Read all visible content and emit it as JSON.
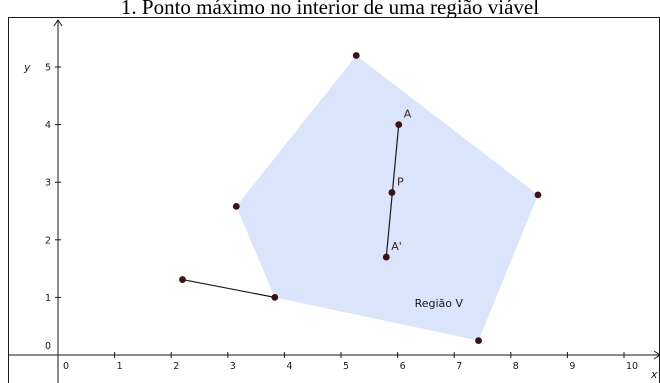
{
  "caption": "1. Ponto máximo no interior de uma região viável",
  "axes": {
    "x_name": "x",
    "y_name": "y",
    "x_ticks": [
      "0",
      "1",
      "2",
      "3",
      "4",
      "5",
      "6",
      "7",
      "8",
      "9",
      "10"
    ],
    "y_ticks": [
      "0",
      "1",
      "2",
      "3",
      "4",
      "5"
    ]
  },
  "region": {
    "label": "Região V",
    "fill": "#dae4fa",
    "vertices": [
      [
        5.27,
        5.2
      ],
      [
        8.48,
        2.78
      ],
      [
        7.43,
        0.25
      ],
      [
        3.83,
        1.0
      ],
      [
        3.15,
        2.58
      ]
    ]
  },
  "segments": [
    {
      "from": [
        2.2,
        1.31
      ],
      "to": [
        3.83,
        1.0
      ]
    },
    {
      "from": [
        5.8,
        1.7
      ],
      "to": [
        6.02,
        4.0
      ]
    }
  ],
  "points": [
    {
      "label": "A",
      "x": 6.02,
      "y": 4.0
    },
    {
      "label": "P",
      "x": 5.9,
      "y": 2.82
    },
    {
      "label": "A'",
      "x": 5.8,
      "y": 1.7
    },
    {
      "label": "",
      "x": 5.27,
      "y": 5.2
    },
    {
      "label": "",
      "x": 8.48,
      "y": 2.78
    },
    {
      "label": "",
      "x": 7.43,
      "y": 0.25
    },
    {
      "label": "",
      "x": 3.83,
      "y": 1.0
    },
    {
      "label": "",
      "x": 3.15,
      "y": 2.58
    },
    {
      "label": "",
      "x": 2.2,
      "y": 1.31
    }
  ],
  "colors": {
    "axis": "#1a1a1a",
    "segment": "#1a1a1a",
    "point": "#3a1212"
  }
}
